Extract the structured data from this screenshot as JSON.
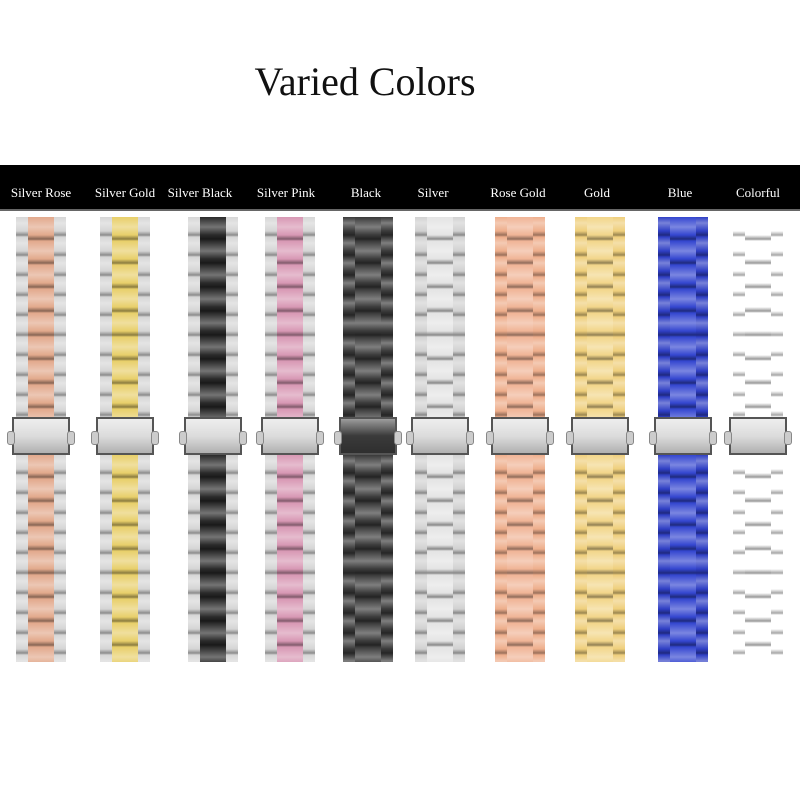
{
  "title": "Varied Colors",
  "variants": [
    {
      "label": "Silver Rose",
      "side": "#d6d6d6",
      "center": "#e2a98c"
    },
    {
      "label": "Silver Gold",
      "side": "#d6d6d6",
      "center": "#e8cf6a"
    },
    {
      "label": "Silver Black",
      "side": "#d6d6d6",
      "center": "#2a2a2a"
    },
    {
      "label": "Silver Pink",
      "side": "#d6d6d6",
      "center": "#d898b4"
    },
    {
      "label": "Black",
      "side": "#3a3a3a",
      "center": "#3a3a3a"
    },
    {
      "label": "Silver",
      "side": "#d2d2d2",
      "center": "#e4e4e4"
    },
    {
      "label": "Rose Gold",
      "side": "#eeae8c",
      "center": "#f0b496"
    },
    {
      "label": "Gold",
      "side": "#efcf7c",
      "center": "#f2d68a"
    },
    {
      "label": "Blue",
      "side": "#2f3fc4",
      "center": "#3446d0"
    },
    {
      "label": "Colorful",
      "side": "#5a3ad0",
      "center": "#9a2ad0"
    }
  ]
}
